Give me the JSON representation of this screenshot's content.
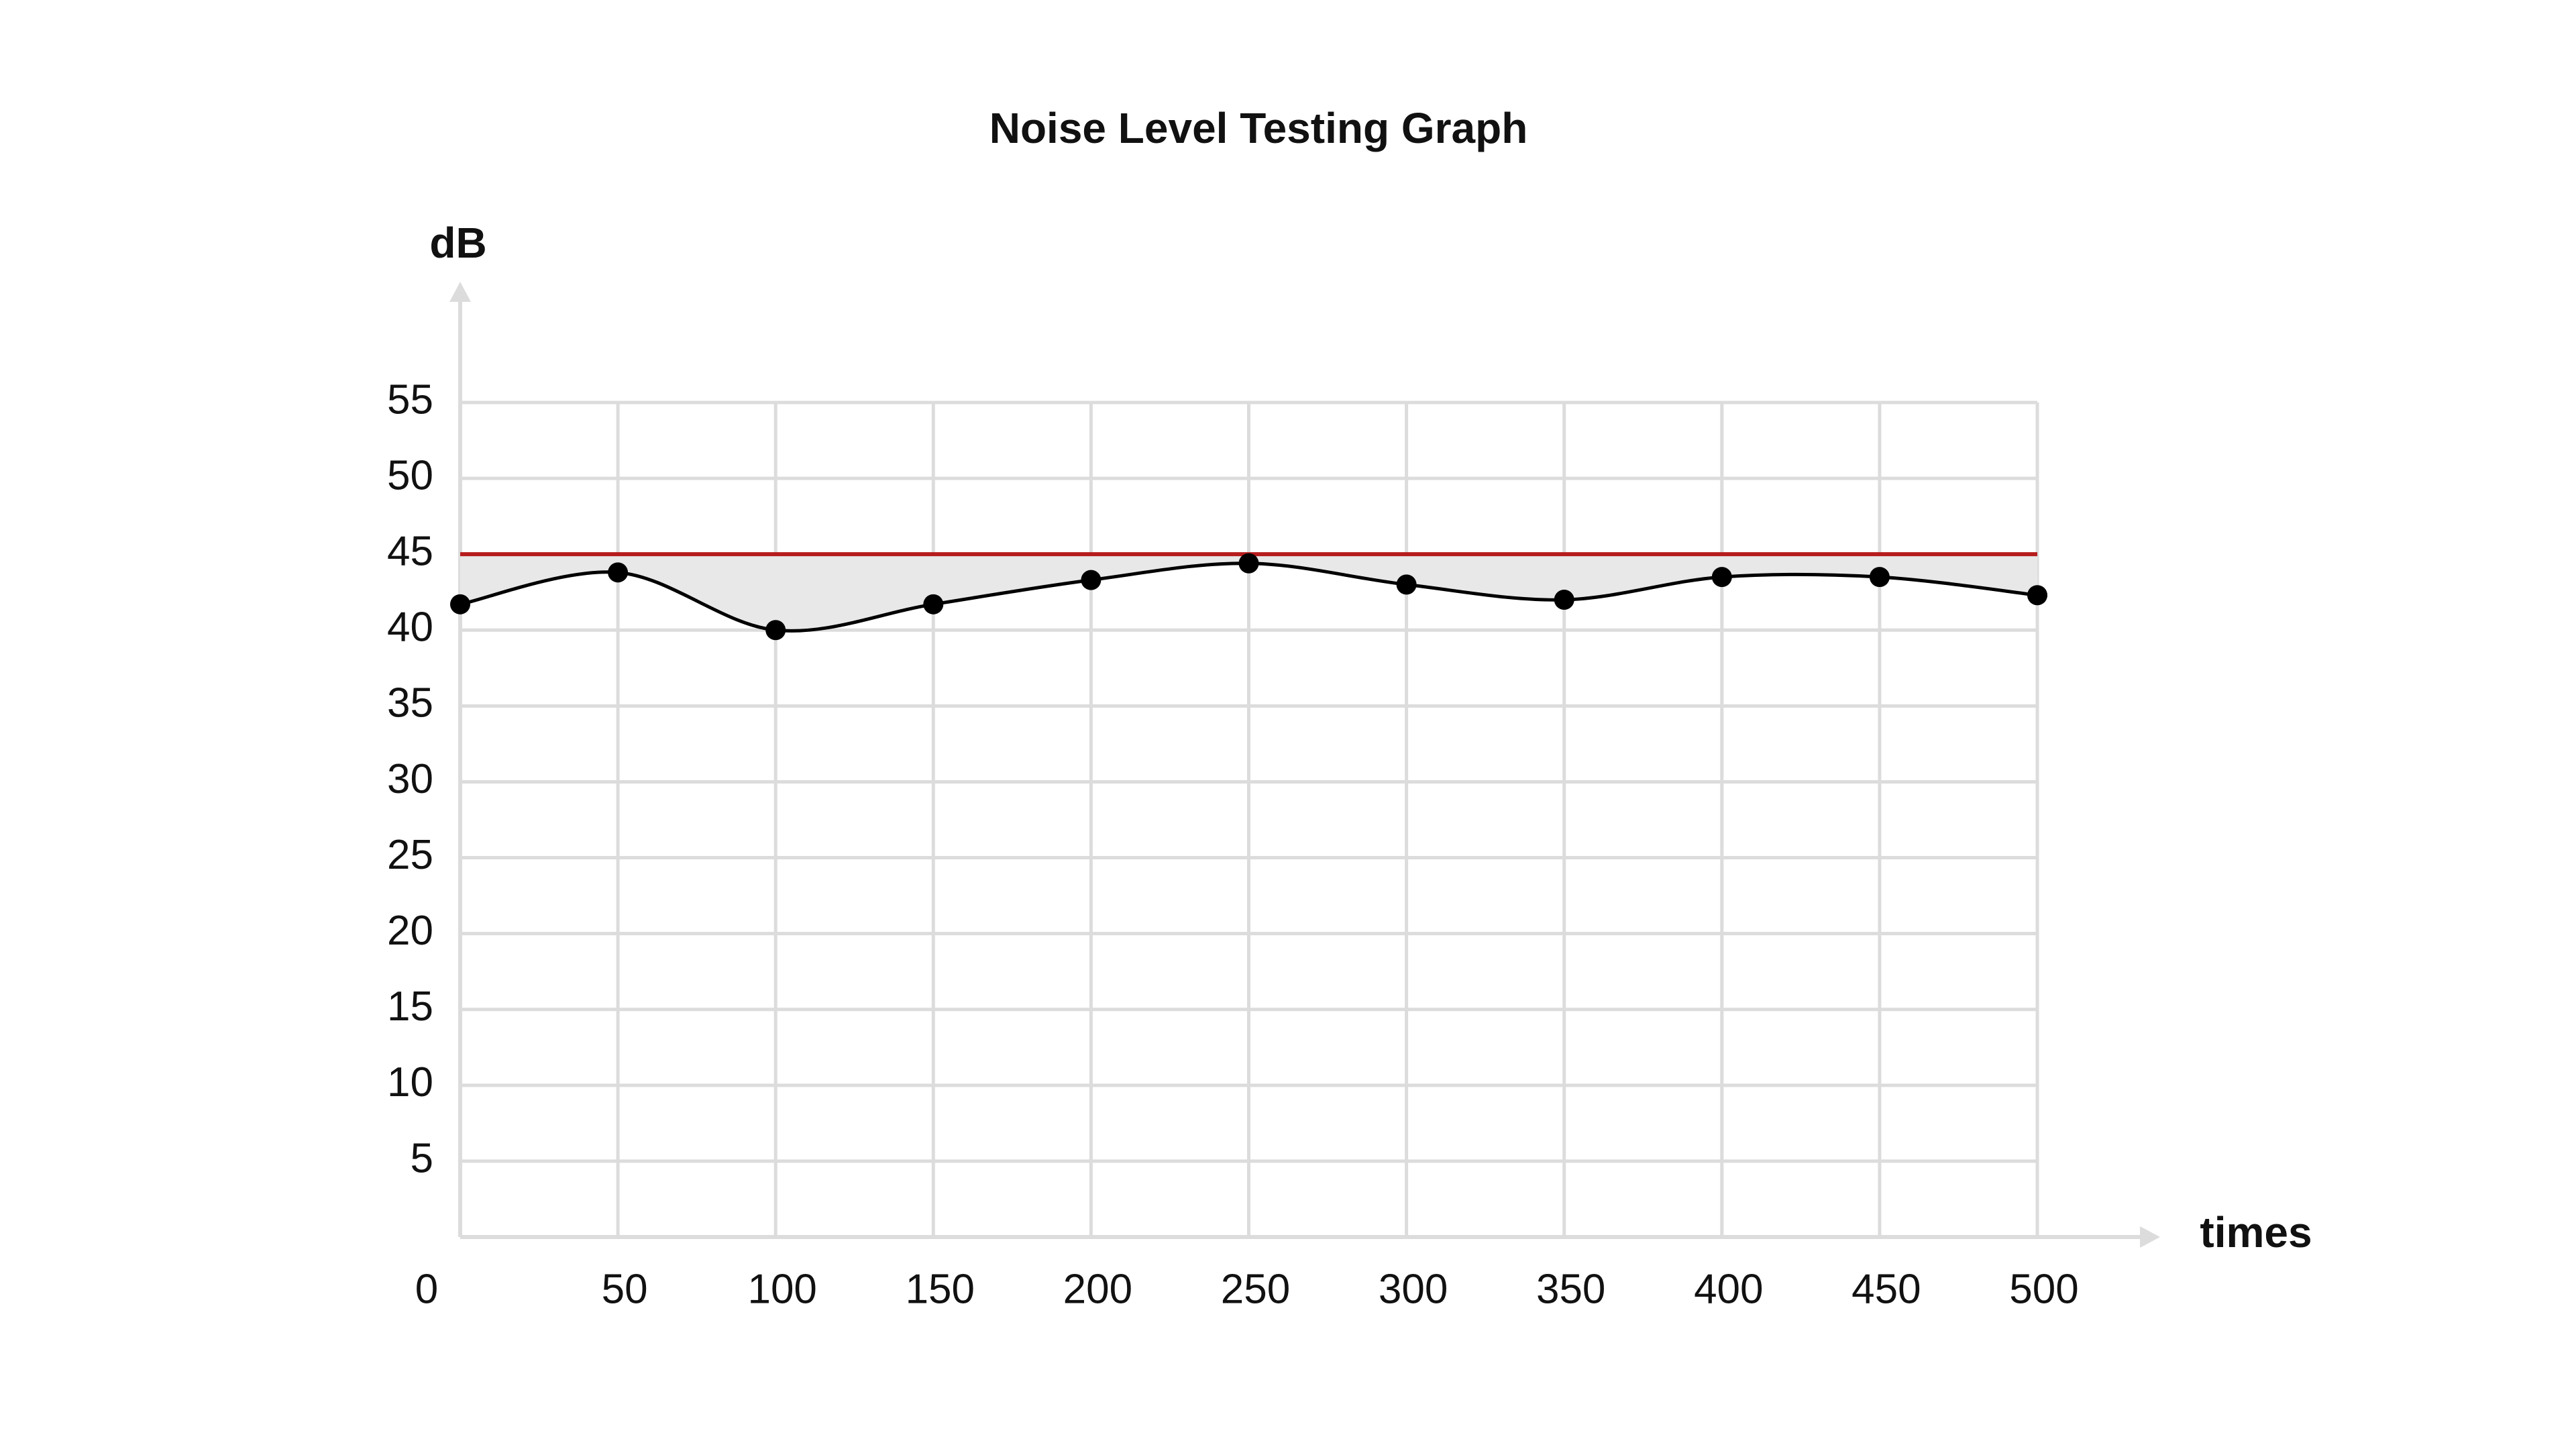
{
  "chart_data": {
    "type": "line",
    "title": "Noise Level Testing Graph",
    "y_label": "dB",
    "x_label": "times",
    "x": [
      0,
      50,
      100,
      150,
      200,
      250,
      300,
      350,
      400,
      450,
      500
    ],
    "series": [
      {
        "color": "#000000",
        "values": [
          41.7,
          43.8,
          40,
          41.7,
          43.3,
          44.4,
          43,
          42,
          43.5,
          43.5,
          42.3
        ]
      }
    ],
    "threshold": 45,
    "threshold_color": "#b71c1c",
    "fill_color": "#e8e8e8",
    "xlim": [
      0,
      500
    ],
    "xticks": [
      0,
      50,
      100,
      150,
      200,
      250,
      300,
      350,
      400,
      450,
      500
    ],
    "ylim": [
      0,
      55
    ],
    "yticks": [
      5,
      10,
      15,
      20,
      25,
      30,
      35,
      40,
      45,
      50,
      55
    ],
    "grid": true
  }
}
